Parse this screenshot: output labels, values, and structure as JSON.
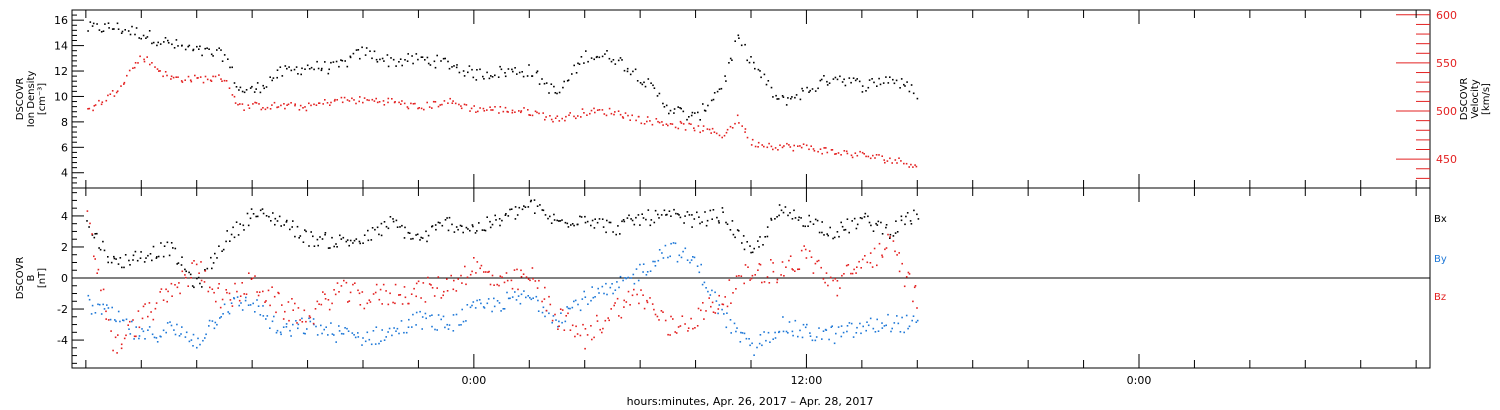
{
  "chart_data": [
    {
      "type": "scatter",
      "panel": "top",
      "ylabel_left_lines": [
        "DSCOVR",
        "Ion Density",
        "[cm⁻³]"
      ],
      "ylabel_right_lines": [
        "DSCOVR",
        "Velocity",
        "[km/s]"
      ],
      "ylim_left": [
        2.8,
        16.8
      ],
      "ylim_right": [
        420,
        605
      ],
      "yticks_left": [
        4,
        6,
        8,
        10,
        12,
        14,
        16
      ],
      "yticks_right": [
        450,
        500,
        550,
        600
      ],
      "colors": {
        "density": "#000000",
        "velocity": "#e32020"
      },
      "series": [
        {
          "axis": "left",
          "x": [
            -14,
            -13,
            -12,
            -11,
            -10,
            -9,
            -8.5,
            -8,
            -7,
            -6,
            -5,
            -4,
            -3,
            -2,
            -1,
            0,
            1,
            2,
            3,
            4,
            5,
            6,
            7,
            8,
            9,
            9.5,
            10,
            11,
            12,
            13,
            14,
            15,
            16
          ],
          "values": [
            15.4,
            15.5,
            15.0,
            14.2,
            13.6,
            13.3,
            10.6,
            10.5,
            11.9,
            12.4,
            12.3,
            13.6,
            12.8,
            13.0,
            12.7,
            11.8,
            12.0,
            12.1,
            10.2,
            13.3,
            13.2,
            11.6,
            9.2,
            8.3,
            11.2,
            14.6,
            12.8,
            9.6,
            10.5,
            11.7,
            10.9,
            11.5,
            10.3
          ]
        },
        {
          "axis": "right",
          "x": [
            -14,
            -13,
            -12,
            -11,
            -10,
            -9,
            -8.5,
            -8,
            -7,
            -6,
            -5,
            -4,
            -3,
            -2,
            -1,
            0,
            1,
            2,
            3,
            4,
            5,
            6,
            7,
            8,
            9,
            9.5,
            10,
            11,
            12,
            13,
            14,
            15,
            16
          ],
          "values": [
            500,
            520,
            558,
            535,
            534,
            535,
            505,
            506,
            506,
            505,
            512,
            512,
            511,
            504,
            511,
            503,
            502,
            500,
            492,
            500,
            500,
            492,
            488,
            483,
            476,
            493,
            468,
            464,
            463,
            458,
            455,
            450,
            445
          ]
        }
      ]
    },
    {
      "type": "scatter",
      "panel": "bottom",
      "ylabel_lines": [
        "DSCOVR",
        "B",
        "[nT]"
      ],
      "ylim": [
        -5.8,
        5.8
      ],
      "yticks": [
        -4,
        -2,
        0,
        2,
        4
      ],
      "legend": [
        "Bx",
        "By",
        "Bz"
      ],
      "colors": {
        "Bx": "#000000",
        "By": "#1e78d7",
        "Bz": "#e32020"
      },
      "series": [
        {
          "name": "Bx",
          "x": [
            -14,
            -13,
            -12,
            -11,
            -10,
            -9,
            -8,
            -7,
            -6,
            -5,
            -4,
            -3,
            -2,
            -1,
            0,
            1,
            2,
            3,
            4,
            5,
            6,
            7,
            8,
            9,
            10,
            11,
            12,
            13,
            14,
            15,
            16
          ],
          "values": [
            3.5,
            1.0,
            1.5,
            2.0,
            -0.5,
            2.5,
            4.2,
            3.8,
            2.6,
            2.4,
            2.5,
            3.6,
            2.5,
            3.6,
            3.2,
            3.8,
            4.8,
            3.6,
            4.0,
            3.2,
            3.9,
            4.0,
            3.8,
            4.1,
            1.5,
            4.3,
            3.8,
            3.0,
            3.8,
            3.1,
            4.2
          ]
        },
        {
          "name": "By",
          "x": [
            -14,
            -13,
            -12,
            -11,
            -10,
            -9,
            -8,
            -7,
            -6,
            -5,
            -4,
            -3,
            -2,
            -1,
            0,
            1,
            2,
            3,
            4,
            5,
            6,
            7,
            8,
            9,
            10,
            11,
            12,
            13,
            14,
            15,
            16
          ],
          "values": [
            -1.6,
            -2.5,
            -3.8,
            -3.2,
            -4.0,
            -1.8,
            -1.5,
            -3.5,
            -3.0,
            -3.5,
            -3.8,
            -3.5,
            -2.6,
            -3.0,
            -2.0,
            -1.5,
            -1.2,
            -2.5,
            -1.2,
            -0.8,
            0.5,
            2.0,
            1.0,
            -2.5,
            -4.6,
            -3.0,
            -3.5,
            -3.6,
            -3.2,
            -2.8,
            -3.0
          ]
        },
        {
          "name": "Bz",
          "x": [
            -14,
            -13,
            -12,
            -11,
            -10,
            -9,
            -8,
            -7,
            -6,
            -5,
            -4,
            -3,
            -2,
            -1,
            0,
            1,
            2,
            3,
            4,
            5,
            6,
            7,
            8,
            9,
            10,
            11,
            12,
            13,
            14,
            15,
            16
          ],
          "values": [
            4.0,
            -4.5,
            -2.5,
            -1.0,
            0.8,
            -1.5,
            -0.2,
            -1.8,
            -2.5,
            -0.8,
            -1.2,
            -1.0,
            -0.8,
            -0.5,
            0.8,
            -0.5,
            0.2,
            -2.5,
            -3.8,
            -2.0,
            -1.0,
            -3.2,
            -2.5,
            -1.2,
            0.5,
            0.5,
            1.5,
            -0.5,
            1.0,
            2.2,
            -1.5
          ]
        }
      ]
    }
  ],
  "xaxis": {
    "tick_labels": [
      "0:00",
      "12:00",
      "0:00"
    ],
    "title": "hours:minutes, Apr. 26, 2017 – Apr. 28, 2017",
    "range_hours": [
      -14.5,
      34.5
    ],
    "major_ticks_hours": [
      0,
      12,
      24
    ],
    "minor_step_hours": 2
  }
}
